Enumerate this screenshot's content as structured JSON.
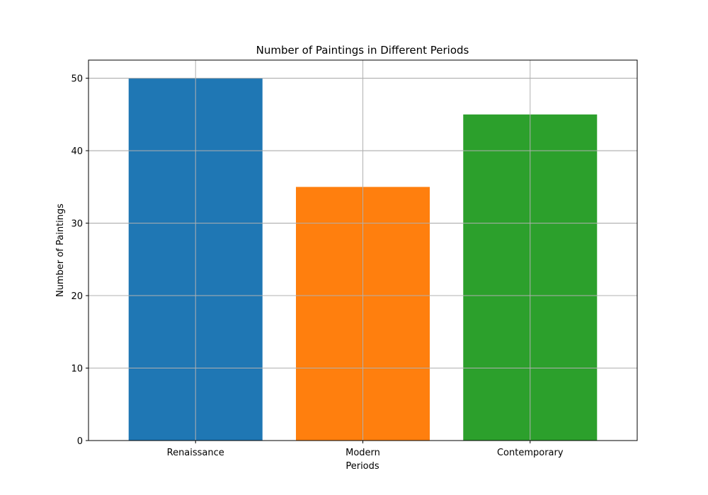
{
  "chart_data": {
    "type": "bar",
    "title": "Number of Paintings in Different Periods",
    "xlabel": "Periods",
    "ylabel": "Number of Paintings",
    "categories": [
      "Renaissance",
      "Modern",
      "Contemporary"
    ],
    "values": [
      50,
      35,
      45
    ],
    "colors": [
      "#1f77b4",
      "#ff7f0e",
      "#2ca02c"
    ],
    "ylim": [
      0,
      52.5
    ],
    "yticks": [
      0,
      10,
      20,
      30,
      40,
      50
    ],
    "grid": true,
    "legend": "none"
  }
}
